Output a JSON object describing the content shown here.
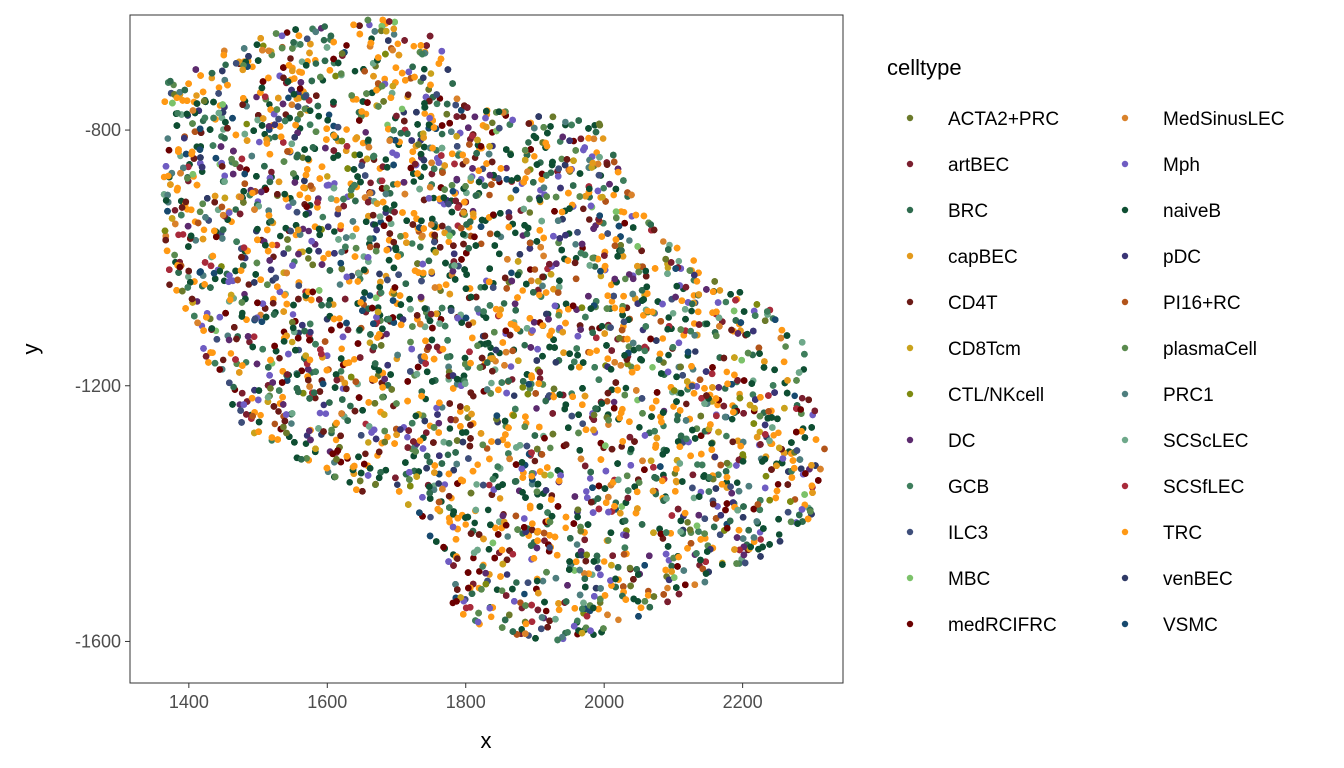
{
  "chart_data": {
    "type": "scatter",
    "xlabel": "x",
    "ylabel": "y",
    "xlim": [
      1315,
      2345
    ],
    "ylim": [
      -1665,
      -620
    ],
    "xticks": [
      1400,
      1600,
      1800,
      2000,
      2200
    ],
    "yticks": [
      -800,
      -1200,
      -1600
    ],
    "grid": false,
    "legend": {
      "title": "celltype",
      "placement": "right",
      "columns": 2
    },
    "outline": [
      [
        1365,
        -725
      ],
      [
        1460,
        -665
      ],
      [
        1560,
        -640
      ],
      [
        1680,
        -625
      ],
      [
        1740,
        -640
      ],
      [
        1770,
        -680
      ],
      [
        1800,
        -760
      ],
      [
        1900,
        -775
      ],
      [
        1995,
        -790
      ],
      [
        2030,
        -880
      ],
      [
        2080,
        -960
      ],
      [
        2160,
        -1030
      ],
      [
        2240,
        -1080
      ],
      [
        2290,
        -1130
      ],
      [
        2300,
        -1230
      ],
      [
        2320,
        -1260
      ],
      [
        2320,
        -1320
      ],
      [
        2300,
        -1410
      ],
      [
        2240,
        -1460
      ],
      [
        2160,
        -1500
      ],
      [
        2060,
        -1560
      ],
      [
        1960,
        -1600
      ],
      [
        1880,
        -1600
      ],
      [
        1780,
        -1555
      ],
      [
        1770,
        -1490
      ],
      [
        1740,
        -1420
      ],
      [
        1600,
        -1340
      ],
      [
        1480,
        -1270
      ],
      [
        1420,
        -1150
      ],
      [
        1375,
        -1070
      ],
      [
        1360,
        -960
      ],
      [
        1365,
        -850
      ]
    ],
    "series": [
      {
        "name": "ACTA2+PRC",
        "color": "#6B7A2A",
        "weight": 2
      },
      {
        "name": "artBEC",
        "color": "#7A1E2E",
        "weight": 3
      },
      {
        "name": "BRC",
        "color": "#2E6B4E",
        "weight": 6
      },
      {
        "name": "capBEC",
        "color": "#E39A1C",
        "weight": 3
      },
      {
        "name": "CD4T",
        "color": "#6B1A16",
        "weight": 4
      },
      {
        "name": "CD8Tcm",
        "color": "#C9A21C",
        "weight": 2
      },
      {
        "name": "CTL/NKcell",
        "color": "#7E8A10",
        "weight": 1
      },
      {
        "name": "DC",
        "color": "#5C2A6E",
        "weight": 3
      },
      {
        "name": "GCB",
        "color": "#3E7E5C",
        "weight": 4
      },
      {
        "name": "ILC3",
        "color": "#3E4E7A",
        "weight": 2
      },
      {
        "name": "MBC",
        "color": "#7CC26A",
        "weight": 1
      },
      {
        "name": "medRCIFRC",
        "color": "#6B0000",
        "weight": 3
      },
      {
        "name": "MedSinusLEC",
        "color": "#D9822B",
        "weight": 2
      },
      {
        "name": "Mph",
        "color": "#6F5CC2",
        "weight": 4
      },
      {
        "name": "naiveB",
        "color": "#0E4E32",
        "weight": 12
      },
      {
        "name": "pDC",
        "color": "#3A3576",
        "weight": 2
      },
      {
        "name": "PI16+RC",
        "color": "#B2541A",
        "weight": 2
      },
      {
        "name": "plasmaCell",
        "color": "#5A8A4E",
        "weight": 4
      },
      {
        "name": "PRC1",
        "color": "#4E7E7E",
        "weight": 3
      },
      {
        "name": "SCScLEC",
        "color": "#6EA88A",
        "weight": 3
      },
      {
        "name": "SCSfLEC",
        "color": "#A82A3A",
        "weight": 2
      },
      {
        "name": "TRC",
        "color": "#FF9914",
        "weight": 14
      },
      {
        "name": "venBEC",
        "color": "#2F3A66",
        "weight": 2
      },
      {
        "name": "VSMC",
        "color": "#17496E",
        "weight": 2
      }
    ]
  }
}
